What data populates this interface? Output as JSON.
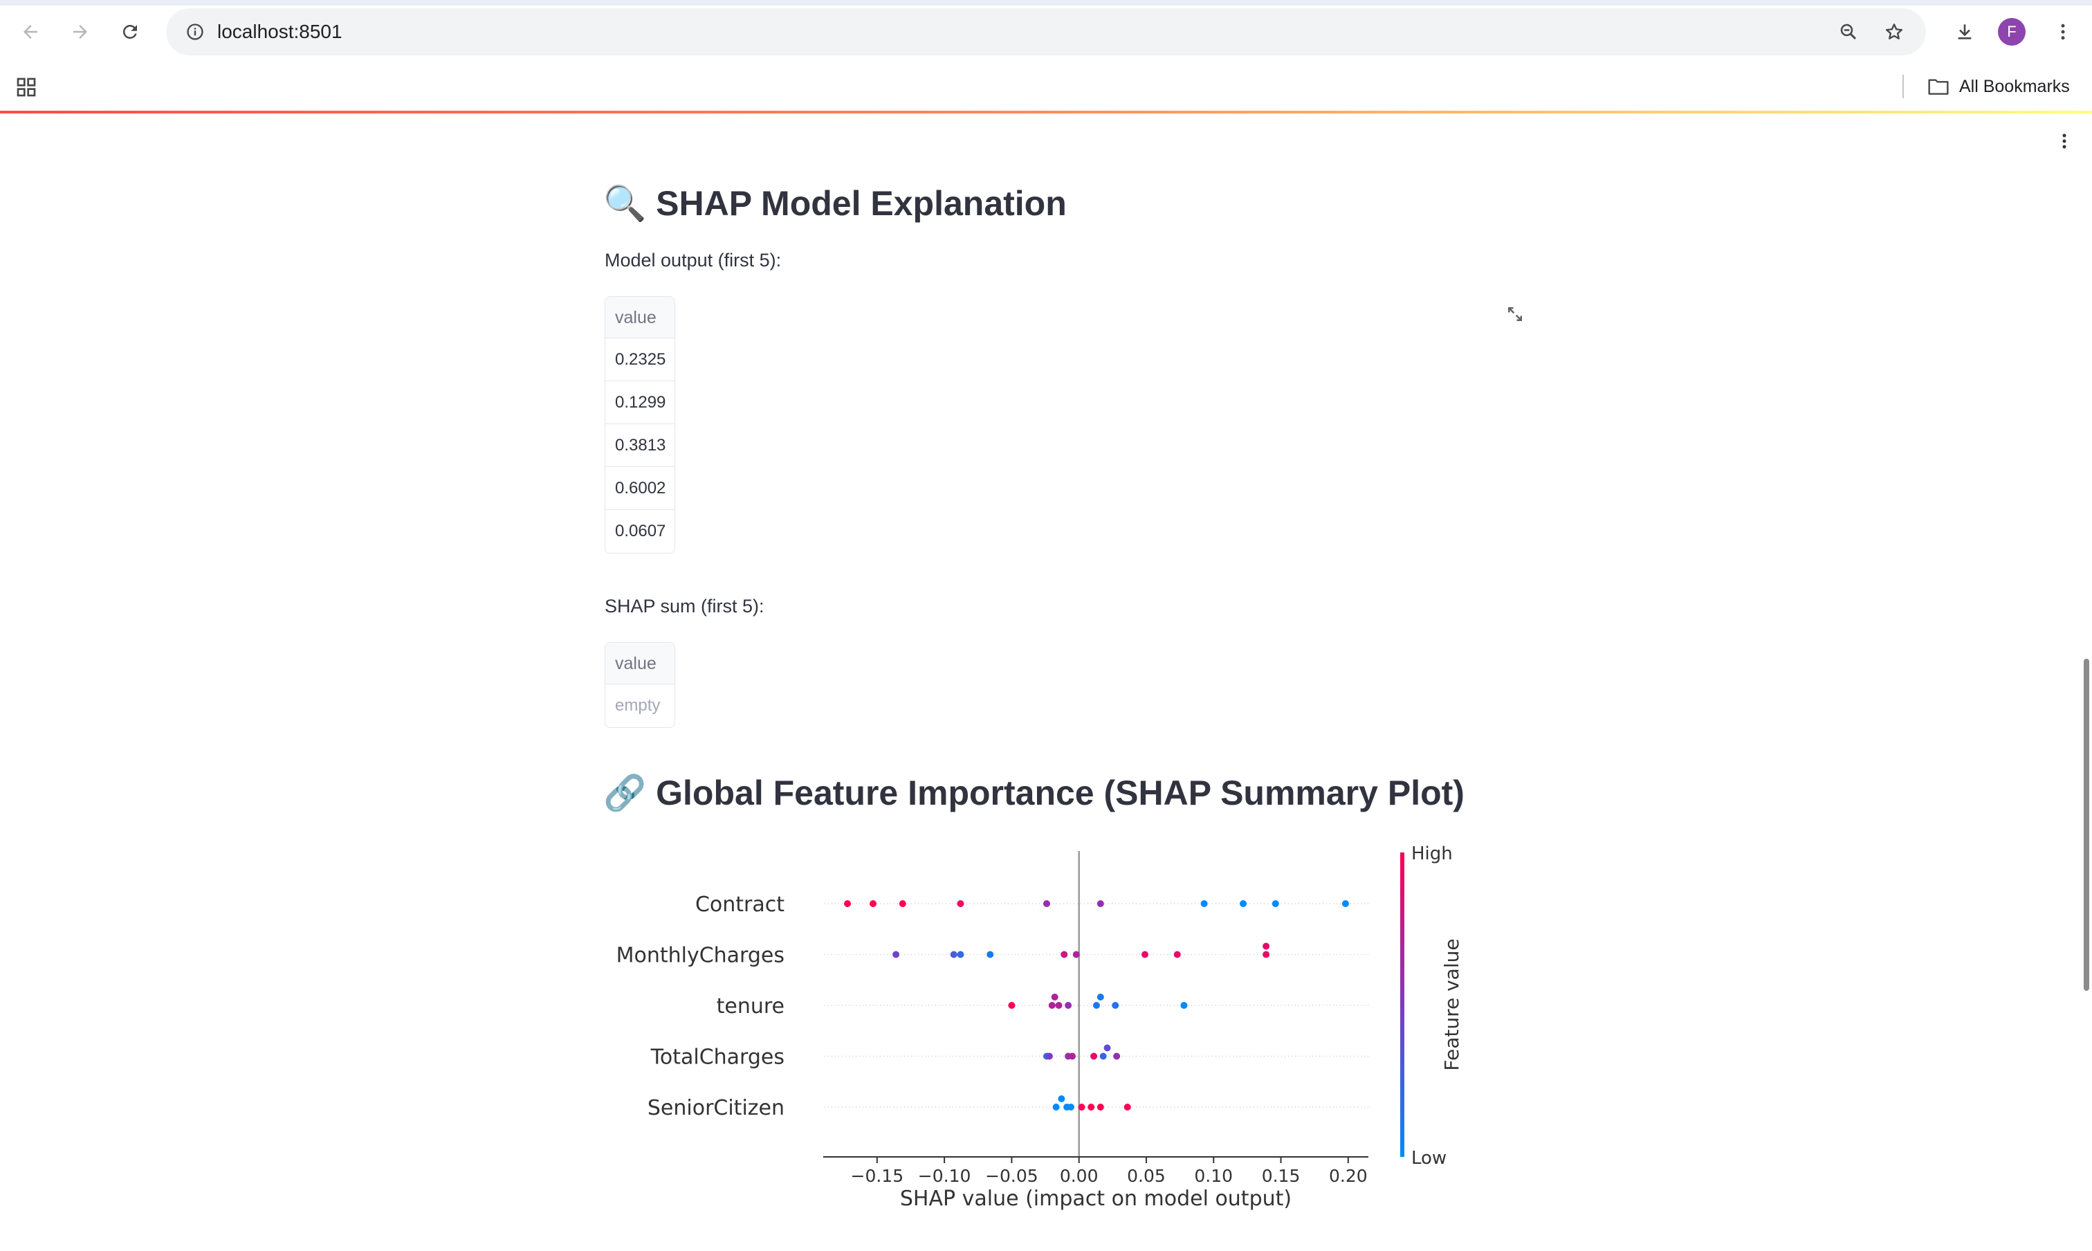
{
  "browser": {
    "url": "localhost:8501",
    "avatar_letter": "F",
    "bookmarks_label": "All Bookmarks"
  },
  "page": {
    "section1_title": "🔍 SHAP Model Explanation",
    "model_output_caption": "Model output (first 5):",
    "model_output_table": {
      "header": "value",
      "rows": [
        "0.2325",
        "0.1299",
        "0.3813",
        "0.6002",
        "0.0607"
      ]
    },
    "shap_sum_caption": "SHAP sum (first 5):",
    "shap_sum_table": {
      "header": "value",
      "empty_text": "empty"
    },
    "section2_title": "🔗 Global Feature Importance (SHAP Summary Plot)"
  },
  "colors": {
    "high": "#ff0052",
    "low": "#008afb",
    "accent_gradient": [
      "#ff4b4b",
      "#fffd80"
    ]
  },
  "chart_data": {
    "type": "scatter",
    "xlabel": "SHAP value (impact on model output)",
    "xlim": [
      -0.19,
      0.215
    ],
    "xticks": [
      -0.15,
      -0.1,
      -0.05,
      0.0,
      0.05,
      0.1,
      0.15,
      0.2
    ],
    "xtick_labels": [
      "−0.15",
      "−0.10",
      "−0.05",
      "0.00",
      "0.05",
      "0.10",
      "0.15",
      "0.20"
    ],
    "features": [
      "Contract",
      "MonthlyCharges",
      "tenure",
      "TotalCharges",
      "SeniorCitizen"
    ],
    "colorbar": {
      "label": "Feature value",
      "high_label": "High",
      "low_label": "Low"
    },
    "points": [
      {
        "feature": "Contract",
        "x": -0.172,
        "v": 1.0
      },
      {
        "feature": "Contract",
        "x": -0.153,
        "v": 1.0
      },
      {
        "feature": "Contract",
        "x": -0.131,
        "v": 1.0
      },
      {
        "feature": "Contract",
        "x": -0.088,
        "v": 0.95
      },
      {
        "feature": "Contract",
        "x": -0.024,
        "v": 0.6
      },
      {
        "feature": "Contract",
        "x": 0.016,
        "v": 0.6
      },
      {
        "feature": "Contract",
        "x": 0.093,
        "v": 0.0
      },
      {
        "feature": "Contract",
        "x": 0.122,
        "v": 0.0
      },
      {
        "feature": "Contract",
        "x": 0.146,
        "v": 0.0
      },
      {
        "feature": "Contract",
        "x": 0.198,
        "v": 0.0
      },
      {
        "feature": "MonthlyCharges",
        "x": -0.136,
        "v": 0.45
      },
      {
        "feature": "MonthlyCharges",
        "x": -0.093,
        "v": 0.3
      },
      {
        "feature": "MonthlyCharges",
        "x": -0.088,
        "v": 0.2
      },
      {
        "feature": "MonthlyCharges",
        "x": -0.066,
        "v": 0.1
      },
      {
        "feature": "MonthlyCharges",
        "x": -0.011,
        "v": 0.8
      },
      {
        "feature": "MonthlyCharges",
        "x": -0.002,
        "v": 0.7
      },
      {
        "feature": "MonthlyCharges",
        "x": 0.049,
        "v": 0.9
      },
      {
        "feature": "MonthlyCharges",
        "x": 0.073,
        "v": 0.9
      },
      {
        "feature": "MonthlyCharges",
        "x": 0.139,
        "v": 0.9
      },
      {
        "feature": "MonthlyCharges",
        "x": 0.139,
        "v": 0.9
      },
      {
        "feature": "tenure",
        "x": -0.05,
        "v": 1.0
      },
      {
        "feature": "tenure",
        "x": -0.02,
        "v": 0.7
      },
      {
        "feature": "tenure",
        "x": -0.018,
        "v": 0.7
      },
      {
        "feature": "tenure",
        "x": -0.015,
        "v": 0.7
      },
      {
        "feature": "tenure",
        "x": -0.008,
        "v": 0.6
      },
      {
        "feature": "tenure",
        "x": 0.013,
        "v": 0.1
      },
      {
        "feature": "tenure",
        "x": 0.016,
        "v": 0.1
      },
      {
        "feature": "tenure",
        "x": 0.027,
        "v": 0.15
      },
      {
        "feature": "tenure",
        "x": 0.078,
        "v": 0.0
      },
      {
        "feature": "TotalCharges",
        "x": -0.024,
        "v": 0.2
      },
      {
        "feature": "TotalCharges",
        "x": -0.022,
        "v": 0.5
      },
      {
        "feature": "TotalCharges",
        "x": -0.008,
        "v": 0.6
      },
      {
        "feature": "TotalCharges",
        "x": -0.005,
        "v": 0.7
      },
      {
        "feature": "TotalCharges",
        "x": 0.011,
        "v": 0.9
      },
      {
        "feature": "TotalCharges",
        "x": 0.018,
        "v": 0.2
      },
      {
        "feature": "TotalCharges",
        "x": 0.021,
        "v": 0.4
      },
      {
        "feature": "TotalCharges",
        "x": 0.028,
        "v": 0.6
      },
      {
        "feature": "SeniorCitizen",
        "x": -0.017,
        "v": 0.0
      },
      {
        "feature": "SeniorCitizen",
        "x": -0.013,
        "v": 0.0
      },
      {
        "feature": "SeniorCitizen",
        "x": -0.009,
        "v": 0.0
      },
      {
        "feature": "SeniorCitizen",
        "x": -0.006,
        "v": 0.0
      },
      {
        "feature": "SeniorCitizen",
        "x": 0.002,
        "v": 1.0
      },
      {
        "feature": "SeniorCitizen",
        "x": 0.009,
        "v": 1.0
      },
      {
        "feature": "SeniorCitizen",
        "x": 0.016,
        "v": 1.0
      },
      {
        "feature": "SeniorCitizen",
        "x": 0.036,
        "v": 1.0
      }
    ]
  }
}
